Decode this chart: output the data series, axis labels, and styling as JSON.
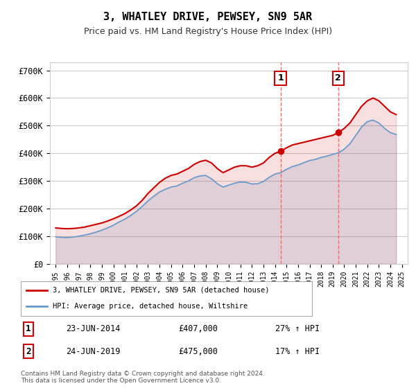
{
  "title": "3, WHATLEY DRIVE, PEWSEY, SN9 5AR",
  "subtitle": "Price paid vs. HM Land Registry's House Price Index (HPI)",
  "red_label": "3, WHATLEY DRIVE, PEWSEY, SN9 5AR (detached house)",
  "blue_label": "HPI: Average price, detached house, Wiltshire",
  "transaction1_label": "1",
  "transaction1_date": "23-JUN-2014",
  "transaction1_price": "£407,000",
  "transaction1_hpi": "27% ↑ HPI",
  "transaction1_x": 2014.48,
  "transaction1_y": 407000,
  "transaction2_label": "2",
  "transaction2_date": "24-JUN-2019",
  "transaction2_price": "£475,000",
  "transaction2_hpi": "17% ↑ HPI",
  "transaction2_x": 2019.48,
  "transaction2_y": 475000,
  "ylabel_ticks": [
    "£0",
    "£100K",
    "£200K",
    "£300K",
    "£400K",
    "£500K",
    "£600K",
    "£700K"
  ],
  "ytick_vals": [
    0,
    100000,
    200000,
    300000,
    400000,
    500000,
    600000,
    700000
  ],
  "ylim": [
    0,
    730000
  ],
  "xlim_start": 1994.5,
  "xlim_end": 2025.5,
  "background_color": "#ffffff",
  "plot_bg_color": "#ffffff",
  "grid_color": "#cccccc",
  "red_color": "#cc0000",
  "blue_color": "#6699cc",
  "vline_color": "#ff6666",
  "footnote": "Contains HM Land Registry data © Crown copyright and database right 2024.\nThis data is licensed under the Open Government Licence v3.0.",
  "red_x": [
    1995.0,
    1995.5,
    1996.0,
    1996.5,
    1997.0,
    1997.5,
    1998.0,
    1998.5,
    1999.0,
    1999.5,
    2000.0,
    2000.5,
    2001.0,
    2001.5,
    2002.0,
    2002.5,
    2003.0,
    2003.5,
    2004.0,
    2004.5,
    2005.0,
    2005.5,
    2006.0,
    2006.5,
    2007.0,
    2007.5,
    2008.0,
    2008.5,
    2009.0,
    2009.5,
    2010.0,
    2010.5,
    2011.0,
    2011.5,
    2012.0,
    2012.5,
    2013.0,
    2013.5,
    2014.0,
    2014.5,
    2015.0,
    2015.5,
    2016.0,
    2016.5,
    2017.0,
    2017.5,
    2018.0,
    2018.5,
    2019.0,
    2019.5,
    2020.0,
    2020.5,
    2021.0,
    2021.5,
    2022.0,
    2022.5,
    2023.0,
    2023.5,
    2024.0,
    2024.5
  ],
  "red_y": [
    130000,
    128000,
    127000,
    128000,
    130000,
    133000,
    138000,
    143000,
    148000,
    155000,
    163000,
    172000,
    182000,
    195000,
    210000,
    230000,
    255000,
    275000,
    295000,
    310000,
    320000,
    325000,
    335000,
    345000,
    360000,
    370000,
    375000,
    365000,
    345000,
    330000,
    340000,
    350000,
    355000,
    355000,
    350000,
    355000,
    365000,
    385000,
    400000,
    407000,
    420000,
    430000,
    435000,
    440000,
    445000,
    450000,
    455000,
    460000,
    465000,
    475000,
    490000,
    510000,
    540000,
    570000,
    590000,
    600000,
    590000,
    570000,
    550000,
    540000
  ],
  "blue_x": [
    1995.0,
    1995.5,
    1996.0,
    1996.5,
    1997.0,
    1997.5,
    1998.0,
    1998.5,
    1999.0,
    1999.5,
    2000.0,
    2000.5,
    2001.0,
    2001.5,
    2002.0,
    2002.5,
    2003.0,
    2003.5,
    2004.0,
    2004.5,
    2005.0,
    2005.5,
    2006.0,
    2006.5,
    2007.0,
    2007.5,
    2008.0,
    2008.5,
    2009.0,
    2009.5,
    2010.0,
    2010.5,
    2011.0,
    2011.5,
    2012.0,
    2012.5,
    2013.0,
    2013.5,
    2014.0,
    2014.5,
    2015.0,
    2015.5,
    2016.0,
    2016.5,
    2017.0,
    2017.5,
    2018.0,
    2018.5,
    2019.0,
    2019.5,
    2020.0,
    2020.5,
    2021.0,
    2021.5,
    2022.0,
    2022.5,
    2023.0,
    2023.5,
    2024.0,
    2024.5
  ],
  "blue_y": [
    98000,
    96000,
    95000,
    97000,
    100000,
    104000,
    109000,
    115000,
    122000,
    130000,
    140000,
    152000,
    162000,
    175000,
    190000,
    208000,
    228000,
    245000,
    260000,
    270000,
    278000,
    282000,
    292000,
    300000,
    312000,
    318000,
    320000,
    308000,
    290000,
    278000,
    285000,
    292000,
    296000,
    295000,
    289000,
    290000,
    298000,
    313000,
    325000,
    330000,
    342000,
    352000,
    358000,
    366000,
    374000,
    378000,
    385000,
    390000,
    396000,
    402000,
    415000,
    435000,
    465000,
    495000,
    515000,
    520000,
    510000,
    490000,
    475000,
    468000
  ]
}
